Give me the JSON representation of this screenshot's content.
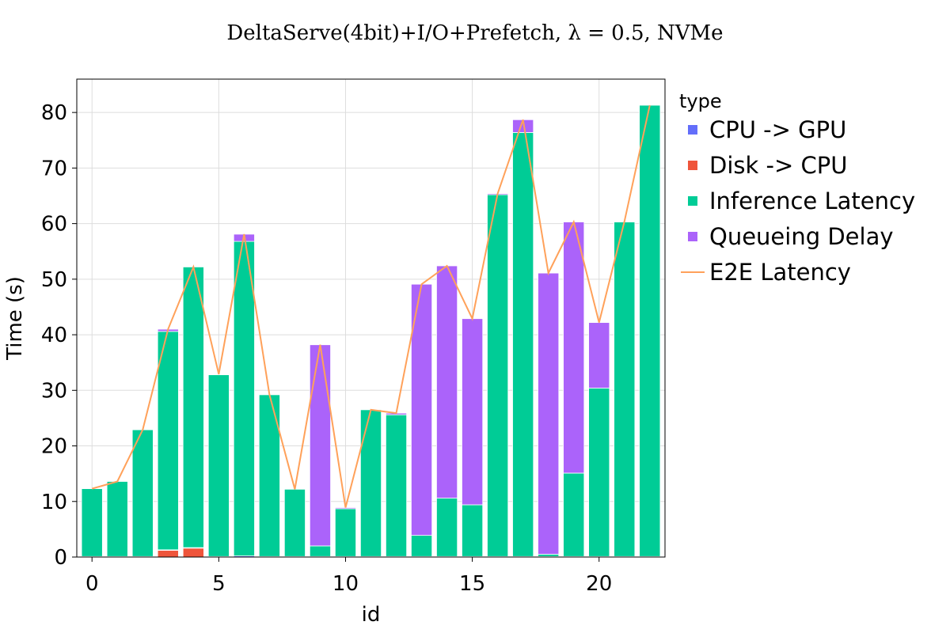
{
  "chart_data": {
    "type": "bar",
    "stacked": true,
    "title": "DeltaServe(4bit)+I/O+Prefetch, λ = 0.5, NVMe",
    "xlabel": "id",
    "ylabel": "Time (s)",
    "x": [
      0,
      1,
      2,
      3,
      4,
      5,
      6,
      7,
      8,
      9,
      10,
      11,
      12,
      13,
      14,
      15,
      16,
      17,
      18,
      19,
      20,
      21,
      22
    ],
    "xlim": [
      -0.6,
      22.6
    ],
    "ylim": [
      0,
      86
    ],
    "x_ticks": [
      0,
      5,
      10,
      15,
      20
    ],
    "y_ticks": [
      0,
      10,
      20,
      30,
      40,
      50,
      60,
      70,
      80
    ],
    "grid": true,
    "legend": {
      "title": "type",
      "placement": "right-outside",
      "entries": [
        "CPU -> GPU",
        "Disk -> CPU",
        "Inference Latency",
        "Queueing Delay",
        "E2E Latency"
      ]
    },
    "series": [
      {
        "name": "Disk -> CPU",
        "color": "#EF553B",
        "values": [
          0,
          0,
          0,
          1.2,
          1.6,
          0,
          0,
          0,
          0,
          0,
          0,
          0,
          0,
          0,
          0,
          0,
          0,
          0,
          0,
          0,
          0,
          0,
          0
        ]
      },
      {
        "name": "CPU -> GPU",
        "color": "#636EFA",
        "values": [
          0.1,
          0.1,
          0.1,
          0.1,
          0.1,
          0.1,
          0.2,
          0.1,
          0.1,
          0.1,
          0.1,
          0.1,
          0.1,
          0.1,
          0.1,
          0.1,
          0.1,
          0.1,
          0.1,
          0.1,
          0.1,
          0.1,
          0.1
        ]
      },
      {
        "name": "Inference Latency",
        "color": "#00CC96",
        "values": [
          12.2,
          13.5,
          22.8,
          39.3,
          50.5,
          32.7,
          56.6,
          29.1,
          12.1,
          1.9,
          8.6,
          26.4,
          25.5,
          3.8,
          10.5,
          9.3,
          65.1,
          76.3,
          0.4,
          15.0,
          30.3,
          60.2,
          81.2
        ]
      },
      {
        "name": "Queueing Delay",
        "color": "#AB63FA",
        "values": [
          0,
          0,
          0,
          0.4,
          0,
          0.1,
          1.3,
          0,
          0,
          36.2,
          0.2,
          0,
          0.3,
          45.2,
          41.8,
          33.5,
          0.2,
          2.3,
          50.6,
          45.2,
          11.8,
          0.1,
          0
        ]
      }
    ],
    "line": {
      "name": "E2E Latency",
      "color": "#FFA15A",
      "values": [
        12.3,
        13.6,
        22.9,
        41.0,
        52.2,
        32.9,
        58.1,
        29.2,
        12.2,
        38.2,
        8.9,
        26.5,
        25.9,
        49.1,
        52.4,
        42.9,
        65.4,
        78.7,
        51.1,
        60.3,
        42.2,
        60.4,
        81.3
      ]
    }
  }
}
